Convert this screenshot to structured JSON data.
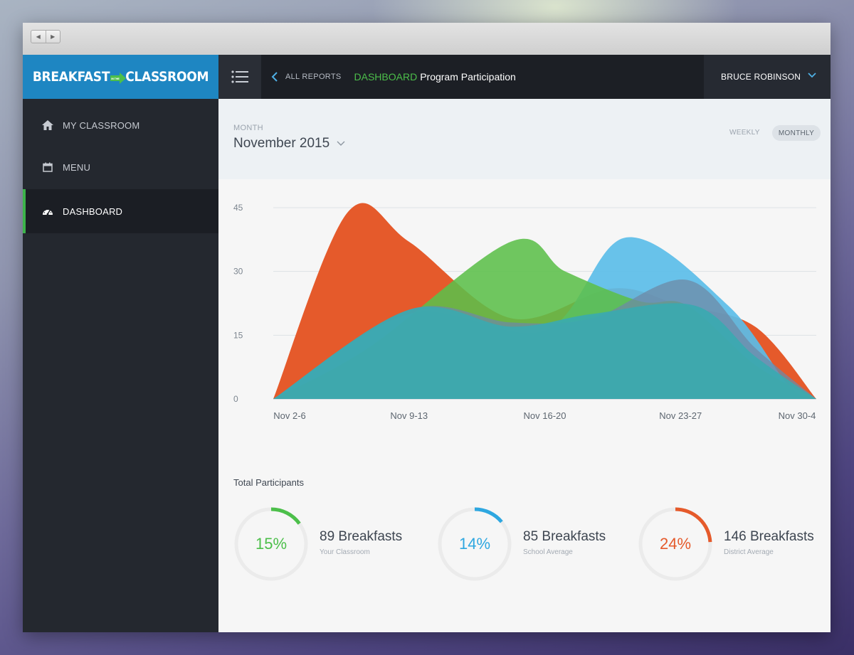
{
  "app": {
    "brand_left": "BREAKFAST",
    "brand_mid": "IN THE",
    "brand_right": "CLASSROOM",
    "brand_color": "#1e86c2"
  },
  "topbar": {
    "back_link": "ALL REPORTS",
    "section": "DASHBOARD",
    "page_title": "Program Participation",
    "user_name": "BRUCE ROBINSON"
  },
  "sidebar": {
    "items": [
      {
        "label": "MY CLASSROOM",
        "icon": "home-icon",
        "active": false
      },
      {
        "label": "MENU",
        "icon": "calendar-icon",
        "active": false
      },
      {
        "label": "DASHBOARD",
        "icon": "dashboard-gauge-icon",
        "active": true
      }
    ],
    "active_color": "#3cb44a"
  },
  "filters": {
    "period_label": "MONTH",
    "period_value": "November 2015",
    "toggle_weekly": "WEEKLY",
    "toggle_monthly": "MONTHLY",
    "selected": "MONTHLY"
  },
  "chart_data": {
    "type": "area",
    "categories": [
      "Nov 2-6",
      "Nov 9-13",
      "Nov 16-20",
      "Nov 23-27",
      "Nov 30-4"
    ],
    "ylim": [
      0,
      45
    ],
    "yticks": [
      0,
      15,
      30,
      45
    ],
    "grid": true,
    "smooth": true,
    "series": [
      {
        "color": "#e55a2b",
        "points": [
          [
            0.0,
            0
          ],
          [
            0.55,
            44
          ],
          [
            1.0,
            37
          ],
          [
            1.75,
            19
          ],
          [
            2.5,
            26
          ],
          [
            3.0,
            22
          ],
          [
            3.55,
            17
          ],
          [
            4.0,
            0
          ]
        ]
      },
      {
        "color": "#5bbde8",
        "points": [
          [
            0.0,
            0
          ],
          [
            1.0,
            20
          ],
          [
            2.0,
            16
          ],
          [
            2.6,
            38
          ],
          [
            3.35,
            22
          ],
          [
            3.8,
            3
          ],
          [
            4.0,
            0
          ]
        ]
      },
      {
        "color": "#5cbf4a",
        "points": [
          [
            0.0,
            0
          ],
          [
            0.7,
            12
          ],
          [
            1.75,
            37
          ],
          [
            2.15,
            30
          ],
          [
            2.7,
            23
          ],
          [
            3.05,
            22
          ],
          [
            3.55,
            8
          ],
          [
            4.0,
            0
          ]
        ]
      },
      {
        "color": "#6e8aa6",
        "points": [
          [
            0.0,
            0
          ],
          [
            1.0,
            21
          ],
          [
            1.75,
            18
          ],
          [
            2.35,
            19
          ],
          [
            3.05,
            28
          ],
          [
            3.55,
            12
          ],
          [
            4.0,
            0
          ]
        ]
      },
      {
        "color": "#3aaab0",
        "points": [
          [
            0.0,
            0
          ],
          [
            1.0,
            21
          ],
          [
            1.75,
            17
          ],
          [
            2.35,
            20
          ],
          [
            3.1,
            22
          ],
          [
            3.55,
            10
          ],
          [
            4.0,
            0
          ]
        ]
      }
    ]
  },
  "totals": {
    "heading": "Total Participants",
    "stats": [
      {
        "percent": "15%",
        "fraction": 0.15,
        "count": "89 Breakfasts",
        "label": "Your Classroom",
        "color": "#4cbf4a"
      },
      {
        "percent": "14%",
        "fraction": 0.14,
        "count": "85 Breakfasts",
        "label": "School Average",
        "color": "#2ea7e0"
      },
      {
        "percent": "24%",
        "fraction": 0.24,
        "count": "146 Breakfasts",
        "label": "District Average",
        "color": "#e55a2b"
      }
    ]
  }
}
